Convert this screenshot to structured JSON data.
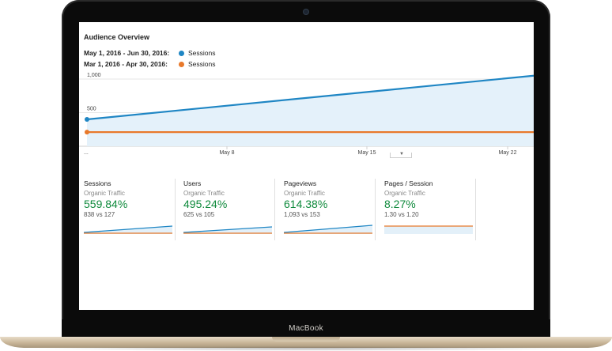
{
  "device": {
    "brand": "MacBook"
  },
  "report": {
    "title": "Audience Overview",
    "legend": [
      {
        "range": "May 1, 2016 - Jun 30, 2016:",
        "series": "Sessions",
        "color": "#1f86c4"
      },
      {
        "range": "Mar 1, 2016 - Apr 30, 2016:",
        "series": "Sessions",
        "color": "#e8792b"
      }
    ]
  },
  "chart_data": {
    "type": "line",
    "ylim": [
      0,
      1000
    ],
    "yticks": [
      "1,000",
      "500"
    ],
    "xticks": [
      "...",
      "May 8",
      "May 15",
      "May 22"
    ],
    "series": [
      {
        "name": "Sessions",
        "color": "#1f86c4",
        "start": 400,
        "end": 1050
      },
      {
        "name": "Sessions",
        "color": "#e8792b",
        "start": 210,
        "end": 210
      }
    ]
  },
  "metrics": [
    {
      "name": "Sessions",
      "segment": "Organic Traffic",
      "change": "559.84%",
      "compare": "838 vs 127"
    },
    {
      "name": "Users",
      "segment": "Organic Traffic",
      "change": "495.24%",
      "compare": "625 vs 105"
    },
    {
      "name": "Pageviews",
      "segment": "Organic Traffic",
      "change": "614.38%",
      "compare": "1,093 vs 153"
    },
    {
      "name": "Pages / Session",
      "segment": "Organic Traffic",
      "change": "8.27%",
      "compare": "1.30 vs 1.20"
    }
  ]
}
